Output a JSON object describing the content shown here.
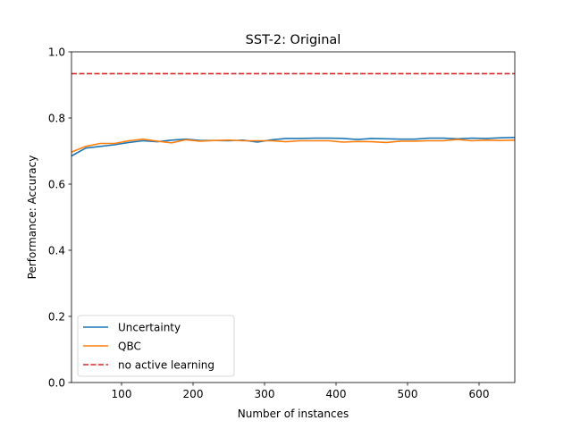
{
  "chart_data": {
    "type": "line",
    "title": "SST-2: Original",
    "xlabel": "Number of instances",
    "ylabel": "Performance: Accuracy",
    "xlim": [
      30,
      650
    ],
    "ylim": [
      0.0,
      1.0
    ],
    "xticks": [
      100,
      200,
      300,
      400,
      500,
      600
    ],
    "xtick_labels": [
      "100",
      "200",
      "300",
      "400",
      "500",
      "600"
    ],
    "yticks": [
      0.0,
      0.2,
      0.4,
      0.6,
      0.8,
      1.0
    ],
    "ytick_labels": [
      "0.0",
      "0.2",
      "0.4",
      "0.6",
      "0.8",
      "1.0"
    ],
    "grid": false,
    "legend_position": "lower-left",
    "x": [
      30,
      50,
      70,
      90,
      110,
      130,
      150,
      170,
      190,
      210,
      230,
      250,
      270,
      290,
      310,
      330,
      350,
      370,
      390,
      410,
      430,
      450,
      470,
      490,
      510,
      530,
      550,
      570,
      590,
      610,
      630,
      650
    ],
    "series": [
      {
        "name": "Uncertainty",
        "color": "#1f77b4",
        "style": "solid",
        "values": [
          0.685,
          0.709,
          0.714,
          0.719,
          0.726,
          0.731,
          0.728,
          0.733,
          0.736,
          0.732,
          0.732,
          0.731,
          0.733,
          0.727,
          0.734,
          0.738,
          0.738,
          0.739,
          0.739,
          0.738,
          0.735,
          0.738,
          0.737,
          0.736,
          0.736,
          0.739,
          0.739,
          0.737,
          0.739,
          0.738,
          0.74,
          0.741
        ]
      },
      {
        "name": "QBC",
        "color": "#ff7f0e",
        "style": "solid",
        "values": [
          0.697,
          0.714,
          0.723,
          0.723,
          0.731,
          0.736,
          0.73,
          0.725,
          0.734,
          0.73,
          0.732,
          0.733,
          0.731,
          0.731,
          0.731,
          0.728,
          0.731,
          0.731,
          0.731,
          0.727,
          0.729,
          0.728,
          0.726,
          0.73,
          0.73,
          0.731,
          0.731,
          0.735,
          0.731,
          0.733,
          0.732,
          0.733
        ]
      },
      {
        "name": "no active learning",
        "color": "#d62728",
        "style": "dashed",
        "values": [
          0.934,
          0.934,
          0.934,
          0.934,
          0.934,
          0.934,
          0.934,
          0.934,
          0.934,
          0.934,
          0.934,
          0.934,
          0.934,
          0.934,
          0.934,
          0.934,
          0.934,
          0.934,
          0.934,
          0.934,
          0.934,
          0.934,
          0.934,
          0.934,
          0.934,
          0.934,
          0.934,
          0.934,
          0.934,
          0.934,
          0.934,
          0.934
        ]
      }
    ]
  }
}
